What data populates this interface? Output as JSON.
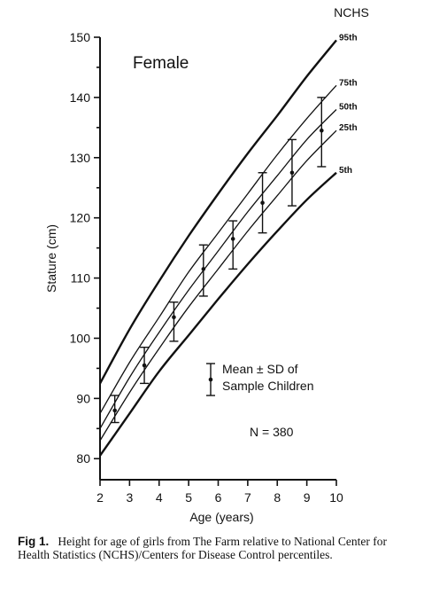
{
  "chart_data": {
    "type": "line",
    "title": "Female",
    "xlabel": "Age (years)",
    "ylabel": "Stature (cm)",
    "xlim": [
      2,
      10
    ],
    "ylim": [
      76.5,
      150
    ],
    "x_ticks": [
      2,
      3,
      4,
      5,
      6,
      7,
      8,
      9,
      10
    ],
    "y_ticks": [
      80,
      90,
      100,
      110,
      120,
      130,
      140,
      150
    ],
    "grid": false,
    "reference_label": "NCHS",
    "percentiles": [
      {
        "name": "95th",
        "weight": 2.4,
        "x": [
          2,
          3,
          4,
          5,
          6,
          7,
          8,
          9,
          10
        ],
        "y": [
          92.5,
          101.5,
          109.5,
          117,
          124,
          130.7,
          137,
          143.5,
          149.5
        ]
      },
      {
        "name": "75th",
        "weight": 1.3,
        "x": [
          2,
          3,
          4,
          5,
          6,
          7,
          8,
          9,
          10
        ],
        "y": [
          87.5,
          96,
          103.5,
          111,
          117.5,
          124,
          130.5,
          136.5,
          142
        ]
      },
      {
        "name": "50th",
        "weight": 1.3,
        "x": [
          2,
          3,
          4,
          5,
          6,
          7,
          8,
          9,
          10
        ],
        "y": [
          85,
          93.5,
          101,
          108,
          114.5,
          121,
          127,
          133,
          138
        ]
      },
      {
        "name": "25th",
        "weight": 1.3,
        "x": [
          2,
          3,
          4,
          5,
          6,
          7,
          8,
          9,
          10
        ],
        "y": [
          83,
          91,
          98.3,
          105.2,
          111.5,
          117.8,
          123.7,
          129.5,
          134.5
        ]
      },
      {
        "name": "5th",
        "weight": 2.4,
        "x": [
          2,
          3,
          4,
          5,
          6,
          7,
          8,
          9,
          10
        ],
        "y": [
          80.5,
          87.5,
          94.5,
          100.5,
          106.5,
          112.3,
          117.8,
          123,
          127.5
        ]
      }
    ],
    "samples": {
      "x": [
        2.5,
        3.5,
        4.5,
        5.5,
        6.5,
        7.5,
        8.5,
        9.5
      ],
      "mean": [
        88,
        95.5,
        103.5,
        111.5,
        116.5,
        122.5,
        127.5,
        134.5
      ],
      "lower": [
        86,
        92.5,
        99.5,
        107,
        111.5,
        117.5,
        122,
        128.5
      ],
      "upper": [
        90.5,
        98.5,
        106,
        115.5,
        119.5,
        127.5,
        133,
        140
      ]
    },
    "legend_label_line1": "Mean  ±  SD of",
    "legend_label_line2": "Sample Children",
    "legend_placement": "center-right",
    "annotation": "N = 380"
  },
  "caption": {
    "fig_number": "Fig 1.",
    "text": "Height for age of girls from The Farm relative to National Center for Health Statistics (NCHS)/Centers for Disease Control percentiles."
  }
}
